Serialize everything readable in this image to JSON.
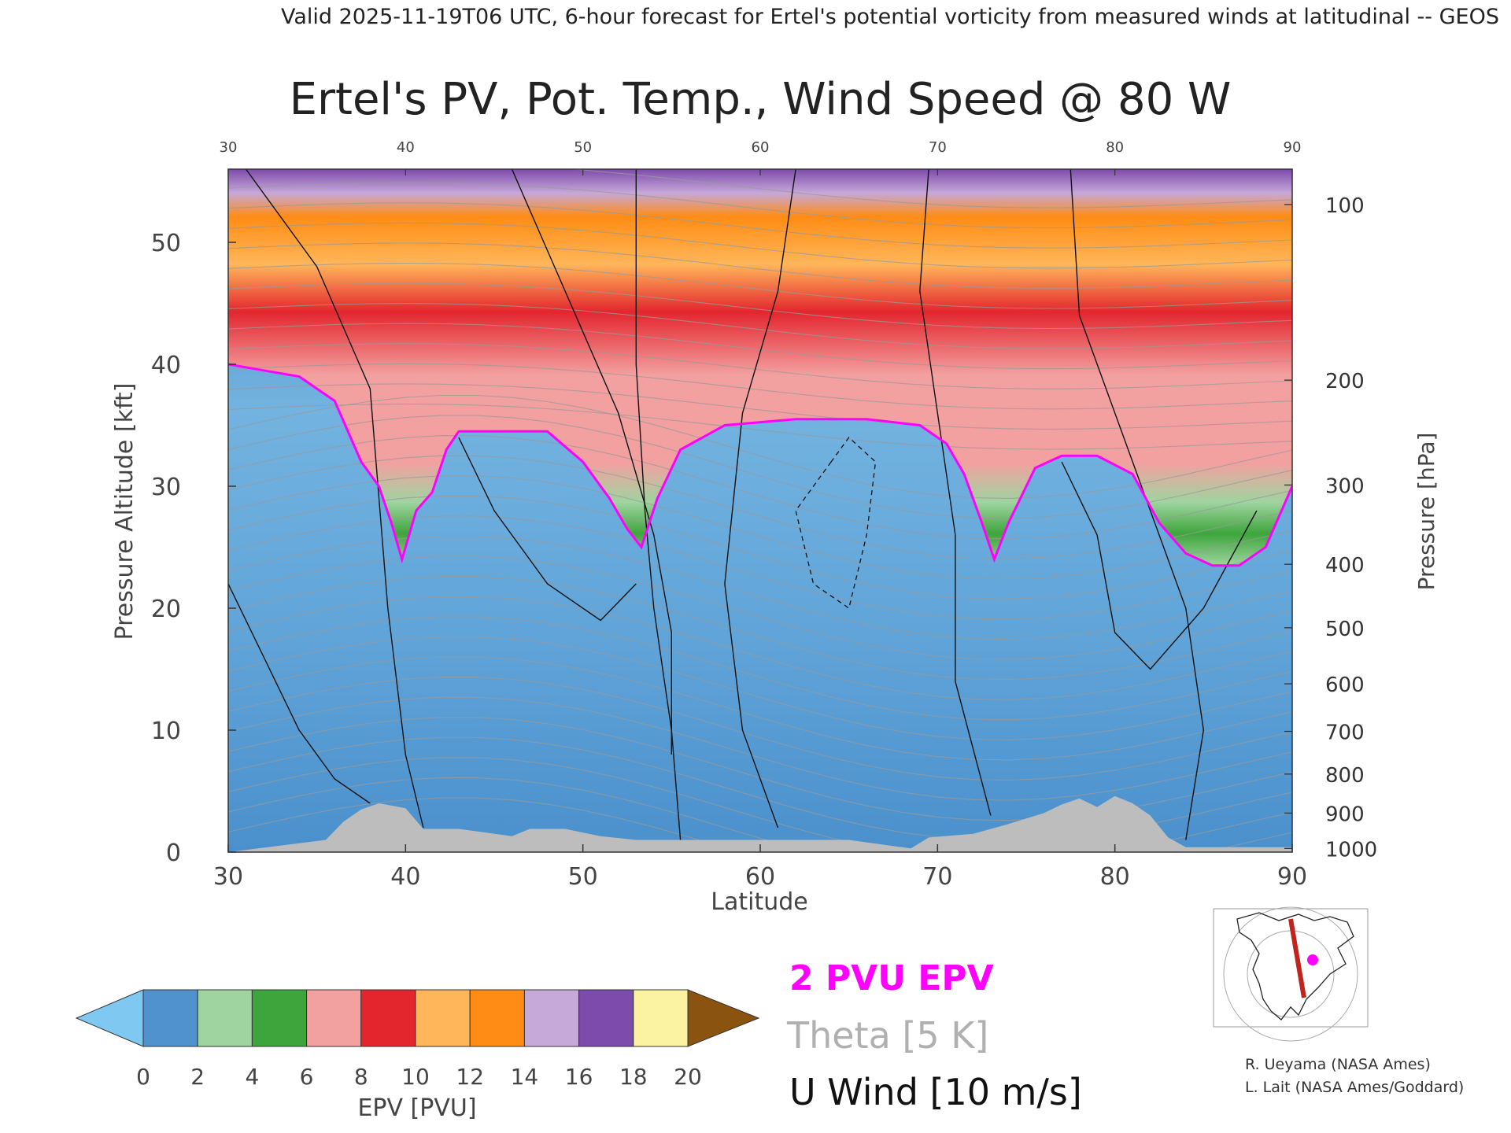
{
  "header": {
    "valid_line": "Valid 2025-11-19T06 UTC, 6-hour forecast for Ertel's potential vorticity from measured winds at latitudinal -- GEOS"
  },
  "chart_data": {
    "type": "heatmap",
    "title": "Ertel's PV, Pot. Temp., Wind Speed @ 80 W",
    "xlabel": "Latitude",
    "ylabel": "Pressure Altitude [kft]",
    "y2label": "Pressure [hPa]",
    "xlim": [
      30,
      90
    ],
    "ylim": [
      0,
      56
    ],
    "x_ticks": [
      "30",
      "40",
      "50",
      "60",
      "70",
      "80",
      "90"
    ],
    "top_ticks": [
      "30",
      "40",
      "50",
      "60",
      "70",
      "80",
      "90"
    ],
    "y_ticks": [
      {
        "label": "0",
        "kft": 0
      },
      {
        "label": "10",
        "kft": 10
      },
      {
        "label": "20",
        "kft": 20
      },
      {
        "label": "30",
        "kft": 30
      },
      {
        "label": "40",
        "kft": 40
      },
      {
        "label": "50",
        "kft": 50
      }
    ],
    "pressure_ticks": [
      {
        "label": "100",
        "kft": 53.1
      },
      {
        "label": "200",
        "kft": 38.7
      },
      {
        "label": "300",
        "kft": 30.1
      },
      {
        "label": "400",
        "kft": 23.6
      },
      {
        "label": "500",
        "kft": 18.4
      },
      {
        "label": "600",
        "kft": 13.8
      },
      {
        "label": "700",
        "kft": 9.9
      },
      {
        "label": "800",
        "kft": 6.4
      },
      {
        "label": "900",
        "kft": 3.2
      },
      {
        "label": "1000",
        "kft": 0.3
      }
    ],
    "tropopause_2pvu": {
      "lat": [
        30,
        32,
        34,
        36,
        37.5,
        38.5,
        39.2,
        39.8,
        40.6,
        41.5,
        42.3,
        43,
        45,
        48,
        50,
        51.5,
        52.5,
        53.3,
        54.2,
        55.5,
        58,
        62,
        66,
        69,
        70.5,
        71.5,
        72.5,
        73.2,
        74,
        75.5,
        77,
        79,
        81,
        82.5,
        84,
        85.5,
        87,
        88.5,
        90
      ],
      "kft": [
        40,
        39.5,
        39,
        37,
        32,
        30,
        27,
        24,
        28,
        29.5,
        33,
        34.5,
        34.5,
        34.5,
        32,
        29,
        26.5,
        25,
        29,
        33,
        35,
        35.5,
        35.5,
        35,
        33.5,
        31,
        27,
        24,
        27,
        31.5,
        32.5,
        32.5,
        31,
        27,
        24.5,
        23.5,
        23.5,
        25,
        30
      ]
    },
    "epv_series_note": "",
    "colorbar": {
      "label": "EPV [PVU]",
      "ticks": [
        "0",
        "2",
        "4",
        "6",
        "8",
        "10",
        "12",
        "14",
        "16",
        "18",
        "20"
      ],
      "colors": [
        "#4f92ce",
        "#9fd4a0",
        "#3ea53c",
        "#f3a0a0",
        "#e3262e",
        "#ffb65a",
        "#ff8c14",
        "#c6a8d9",
        "#7d4bab",
        "#fbf2a2"
      ],
      "under_color": "#7ec8f2",
      "over_color": "#8a5410"
    },
    "legend": {
      "epv_label": "2 PVU EPV",
      "theta_label": "Theta [5 K]",
      "wind_label": "U Wind [10 m/s]"
    },
    "colors": {
      "tropopause": "#ff00ff",
      "theta": "#9a9a9a",
      "wind": "#111111",
      "terrain": "#bdbdbd"
    },
    "terrain": {
      "lat": [
        30,
        35.5,
        36.5,
        37.5,
        38.5,
        40,
        41,
        43,
        46,
        47,
        49,
        51,
        53,
        56,
        60,
        63,
        65,
        68.5,
        69.5,
        72,
        74,
        76,
        77,
        78,
        79,
        80,
        81,
        82,
        83,
        84,
        90
      ],
      "kft": [
        0,
        1,
        2.5,
        3.5,
        4,
        3.6,
        1.9,
        1.9,
        1.3,
        1.9,
        1.9,
        1.3,
        1,
        1,
        1,
        1,
        1,
        0.3,
        1.2,
        1.5,
        2.3,
        3.2,
        3.9,
        4.4,
        3.7,
        4.6,
        4.0,
        3.0,
        1.2,
        0.4,
        0.4
      ]
    }
  },
  "credits": {
    "line1": "R. Ueyama (NASA Ames)",
    "line2": "L. Lait (NASA Ames/Goddard)"
  }
}
